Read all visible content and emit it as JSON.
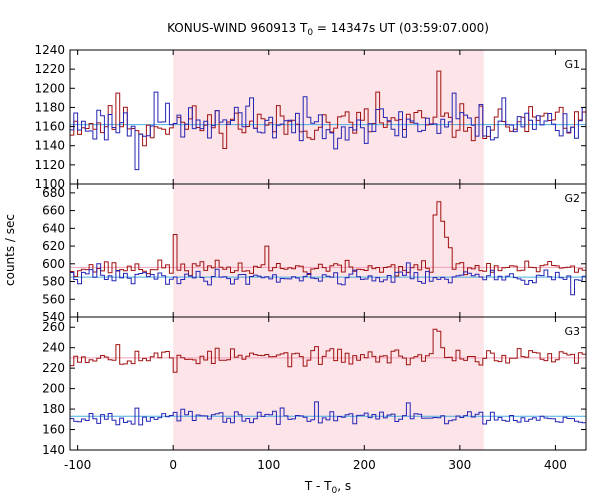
{
  "chart_data": {
    "type": "line",
    "title": "KONUS-WIND 960913 T",
    "title_sub": "0",
    "title_rest": " = 14347s UT (03:59:07.000)",
    "xlabel_main": "T - T",
    "xlabel_sub": "0",
    "xlabel_rest": ", s",
    "ylabel": "counts / sec",
    "xlim": [
      -108,
      432
    ],
    "x_ticks": [
      -100,
      0,
      100,
      200,
      300,
      400
    ],
    "x_tick_labels": [
      "-100",
      "0",
      "100",
      "200",
      "300",
      "400"
    ],
    "shaded_interval": [
      0,
      325
    ],
    "shade_color": "#fde4e8",
    "colors": {
      "red": "#a01010",
      "blue": "#2424b4",
      "cyan": "#4aaee0",
      "pink": "#f2a0b8"
    },
    "panels": [
      {
        "label": "G1",
        "ylim": [
          1100,
          1240
        ],
        "y_ticks": [
          1100,
          1120,
          1140,
          1160,
          1180,
          1200,
          1220,
          1240
        ],
        "y_tick_labels": [
          "1100",
          "1120",
          "1140",
          "1160",
          "1180",
          "1200",
          "1220",
          "1240"
        ],
        "series": [
          {
            "color": "red",
            "base": 1163,
            "amp": 14,
            "seed": 11,
            "spikes": [
              [
                -62,
                1195
              ],
              [
                -34,
                1140
              ],
              [
                276,
                1218
              ],
              [
                213,
                1196
              ],
              [
                404,
                1180
              ]
            ]
          },
          {
            "color": "blue",
            "base": 1163,
            "amp": 15,
            "seed": 23,
            "spikes": [
              [
                -42,
                1115
              ],
              [
                -21,
                1196
              ],
              [
                80,
                1190
              ],
              [
                290,
                1195
              ],
              [
                343,
                1190
              ]
            ]
          }
        ],
        "fit_lines": [
          {
            "color": "cyan",
            "y": 1162
          }
        ]
      },
      {
        "label": "G2",
        "ylim": [
          540,
          690
        ],
        "y_ticks": [
          540,
          560,
          580,
          600,
          620,
          640,
          660,
          680
        ],
        "y_tick_labels": [
          "540",
          "560",
          "580",
          "600",
          "620",
          "640",
          "660",
          "680"
        ],
        "series": [
          {
            "color": "red",
            "base": 595,
            "amp": 6,
            "seed": 37,
            "spikes": [
              [
                0,
                633
              ],
              [
                270,
                655
              ],
              [
                274,
                670
              ],
              [
                278,
                648
              ],
              [
                284,
                630
              ],
              [
                288,
                618
              ],
              [
                94,
                620
              ]
            ]
          },
          {
            "color": "blue",
            "base": 585,
            "amp": 6,
            "seed": 41,
            "spikes": [
              [
                -80,
                600
              ],
              [
                414,
                565
              ],
              [
                243,
                601
              ]
            ]
          }
        ],
        "fit_lines": [
          {
            "color": "cyan",
            "y": 585
          },
          {
            "color": "pink",
            "y": 596
          }
        ]
      },
      {
        "label": "G3",
        "ylim": [
          140,
          270
        ],
        "y_ticks": [
          140,
          160,
          180,
          200,
          220,
          240,
          260
        ],
        "y_tick_labels": [
          "140",
          "160",
          "180",
          "200",
          "220",
          "240",
          "260"
        ],
        "series": [
          {
            "color": "red",
            "base": 231,
            "amp": 6,
            "seed": 53,
            "spikes": [
              [
                270,
                258
              ],
              [
                274,
                256
              ],
              [
                278,
                240
              ],
              [
                -60,
                243
              ],
              [
                -1,
                216
              ]
            ]
          },
          {
            "color": "blue",
            "base": 172,
            "amp": 5,
            "seed": 67,
            "spikes": [
              [
                148,
                187
              ],
              [
                243,
                186
              ],
              [
                -42,
                181
              ]
            ]
          }
        ],
        "fit_lines": [
          {
            "color": "pink",
            "y": 230
          },
          {
            "color": "cyan",
            "y": 173
          }
        ]
      }
    ]
  }
}
